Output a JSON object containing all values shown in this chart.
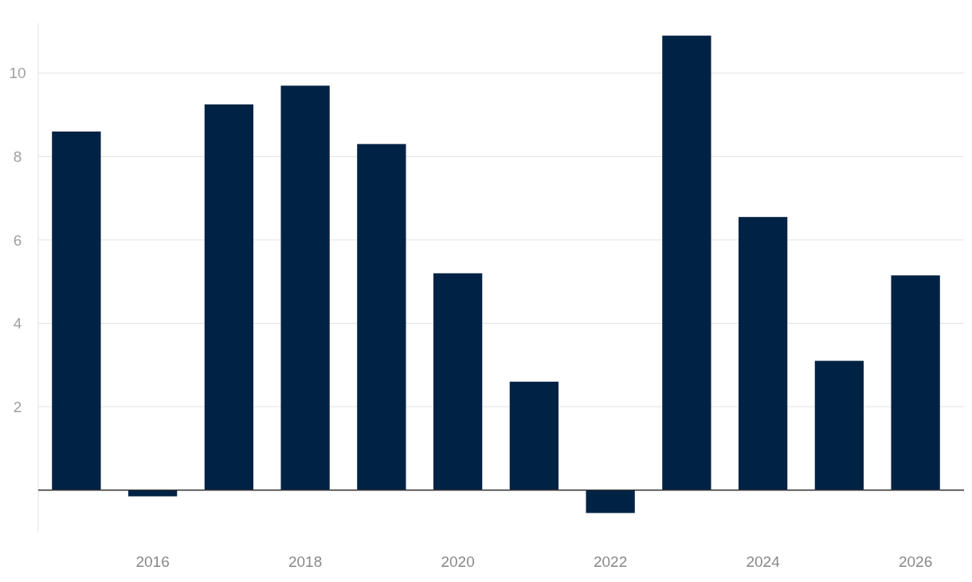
{
  "chart_data": {
    "type": "bar",
    "categories": [
      null,
      "2016",
      null,
      "2018",
      null,
      "2020",
      null,
      "2022",
      null,
      "2024",
      null,
      "2026"
    ],
    "values": [
      8.6,
      -0.15,
      9.25,
      9.7,
      8.3,
      5.2,
      2.6,
      -0.55,
      10.9,
      6.55,
      3.1,
      5.15
    ],
    "color": "#002244",
    "ylim": [
      -1,
      11.2
    ],
    "yticks": [
      2,
      4,
      6,
      8,
      10
    ],
    "grid": "y"
  }
}
